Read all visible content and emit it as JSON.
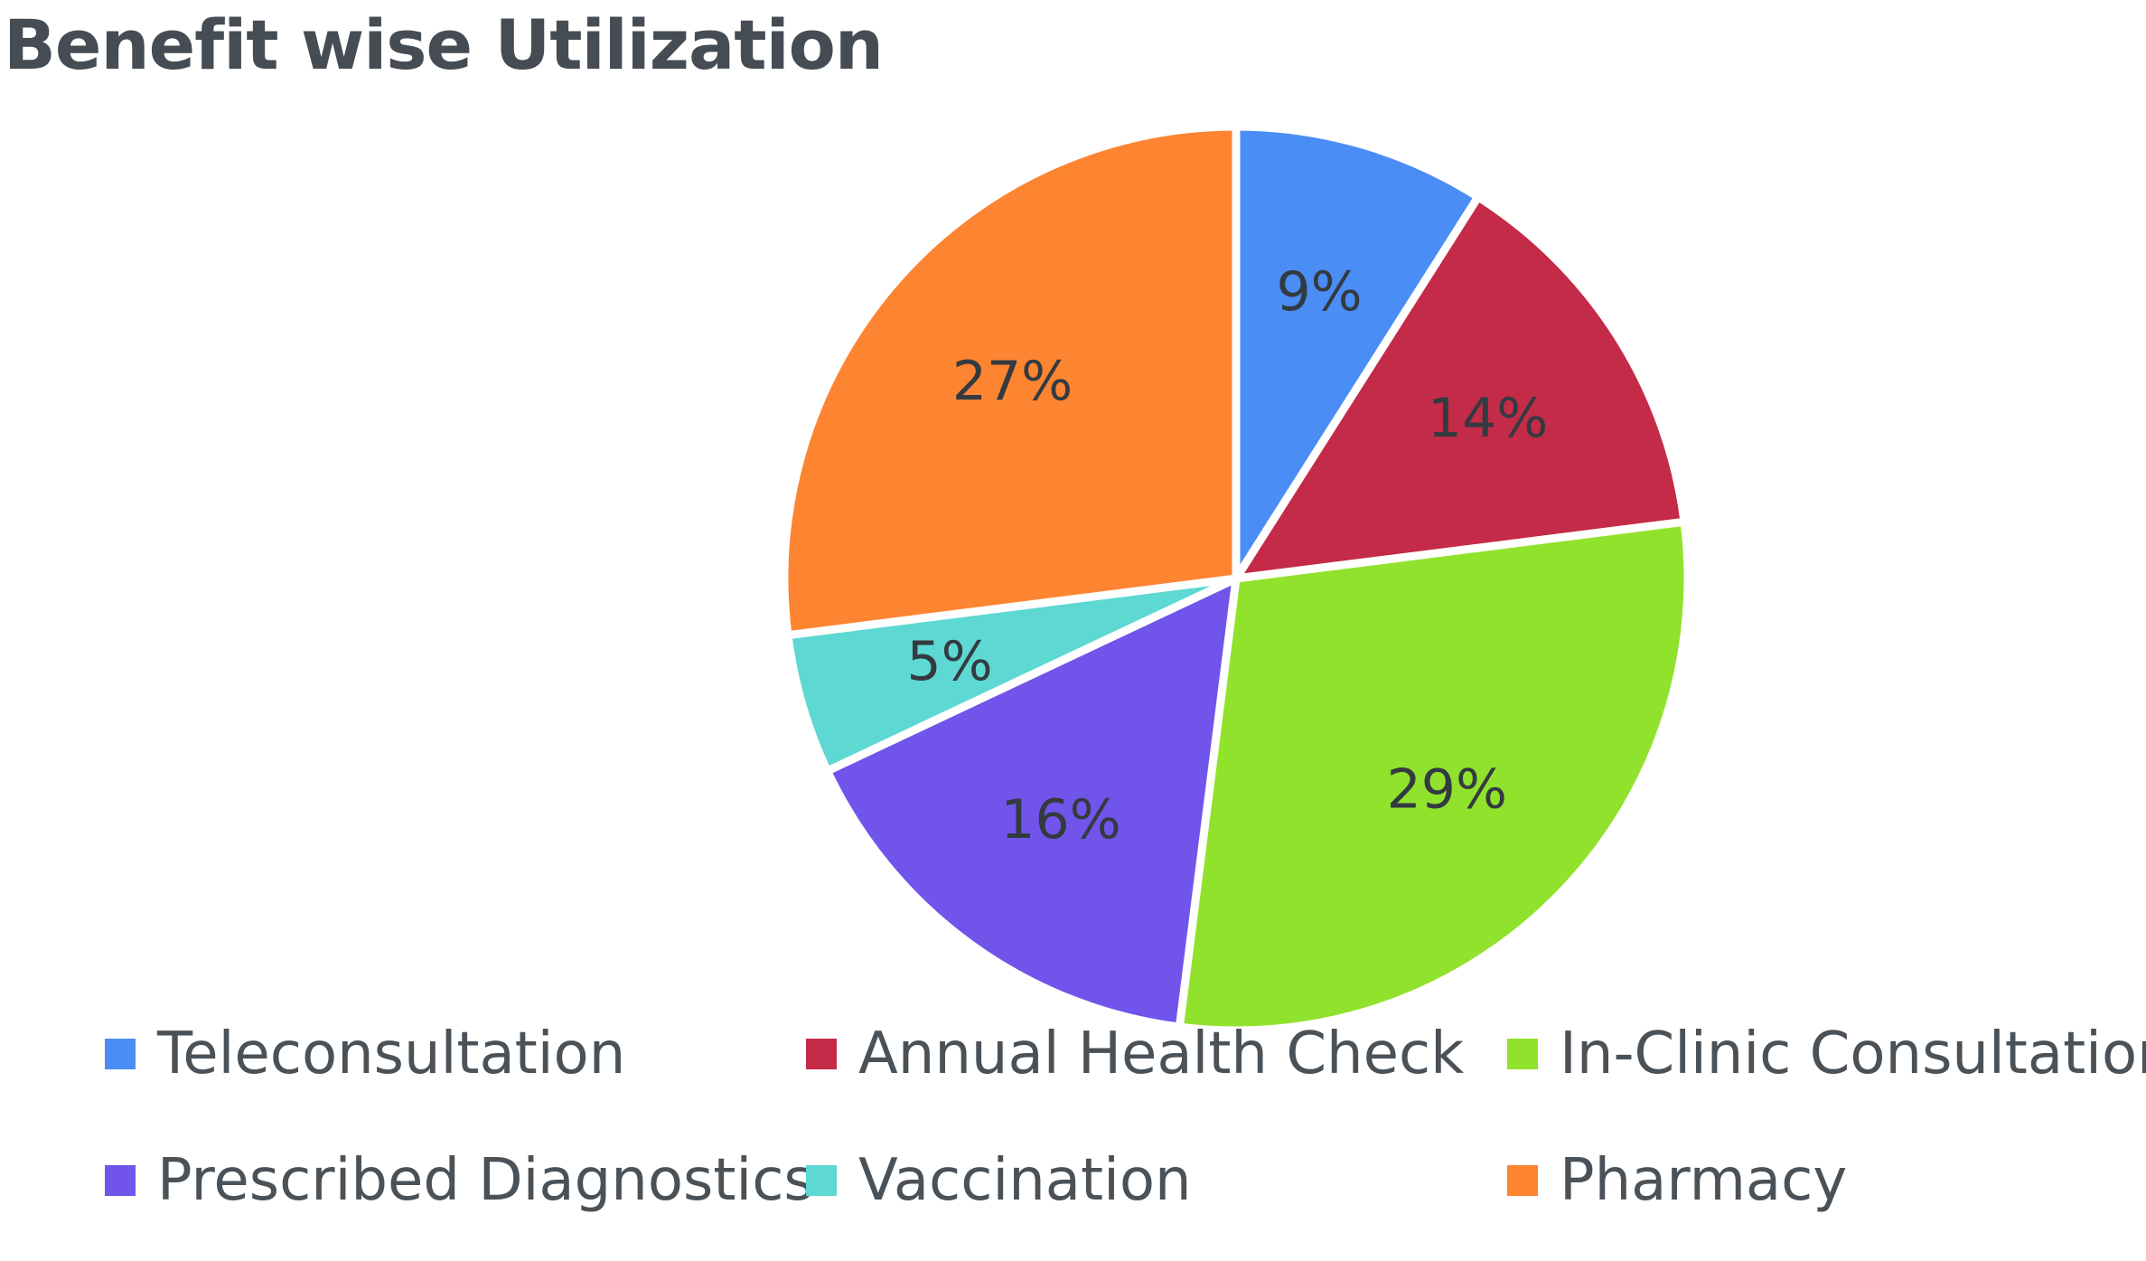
{
  "chart_data": {
    "type": "pie",
    "title": "Benefit wise Utilization",
    "slices": [
      {
        "label": "Teleconsultation",
        "value": 9,
        "display": "9%",
        "color": "#4a8df5"
      },
      {
        "label": "Annual Health Check",
        "value": 14,
        "display": "14%",
        "color": "#c42b48"
      },
      {
        "label": "In-Clinic Consultation",
        "value": 29,
        "display": "29%",
        "color": "#91e22c"
      },
      {
        "label": "Prescribed Diagnostics",
        "value": 16,
        "display": "16%",
        "color": "#7155ea"
      },
      {
        "label": "Vaccination",
        "value": 5,
        "display": "5%",
        "color": "#5dd8d2"
      },
      {
        "label": "Pharmacy",
        "value": 27,
        "display": "27%",
        "color": "#fd8431"
      }
    ],
    "legend_position": "bottom"
  }
}
